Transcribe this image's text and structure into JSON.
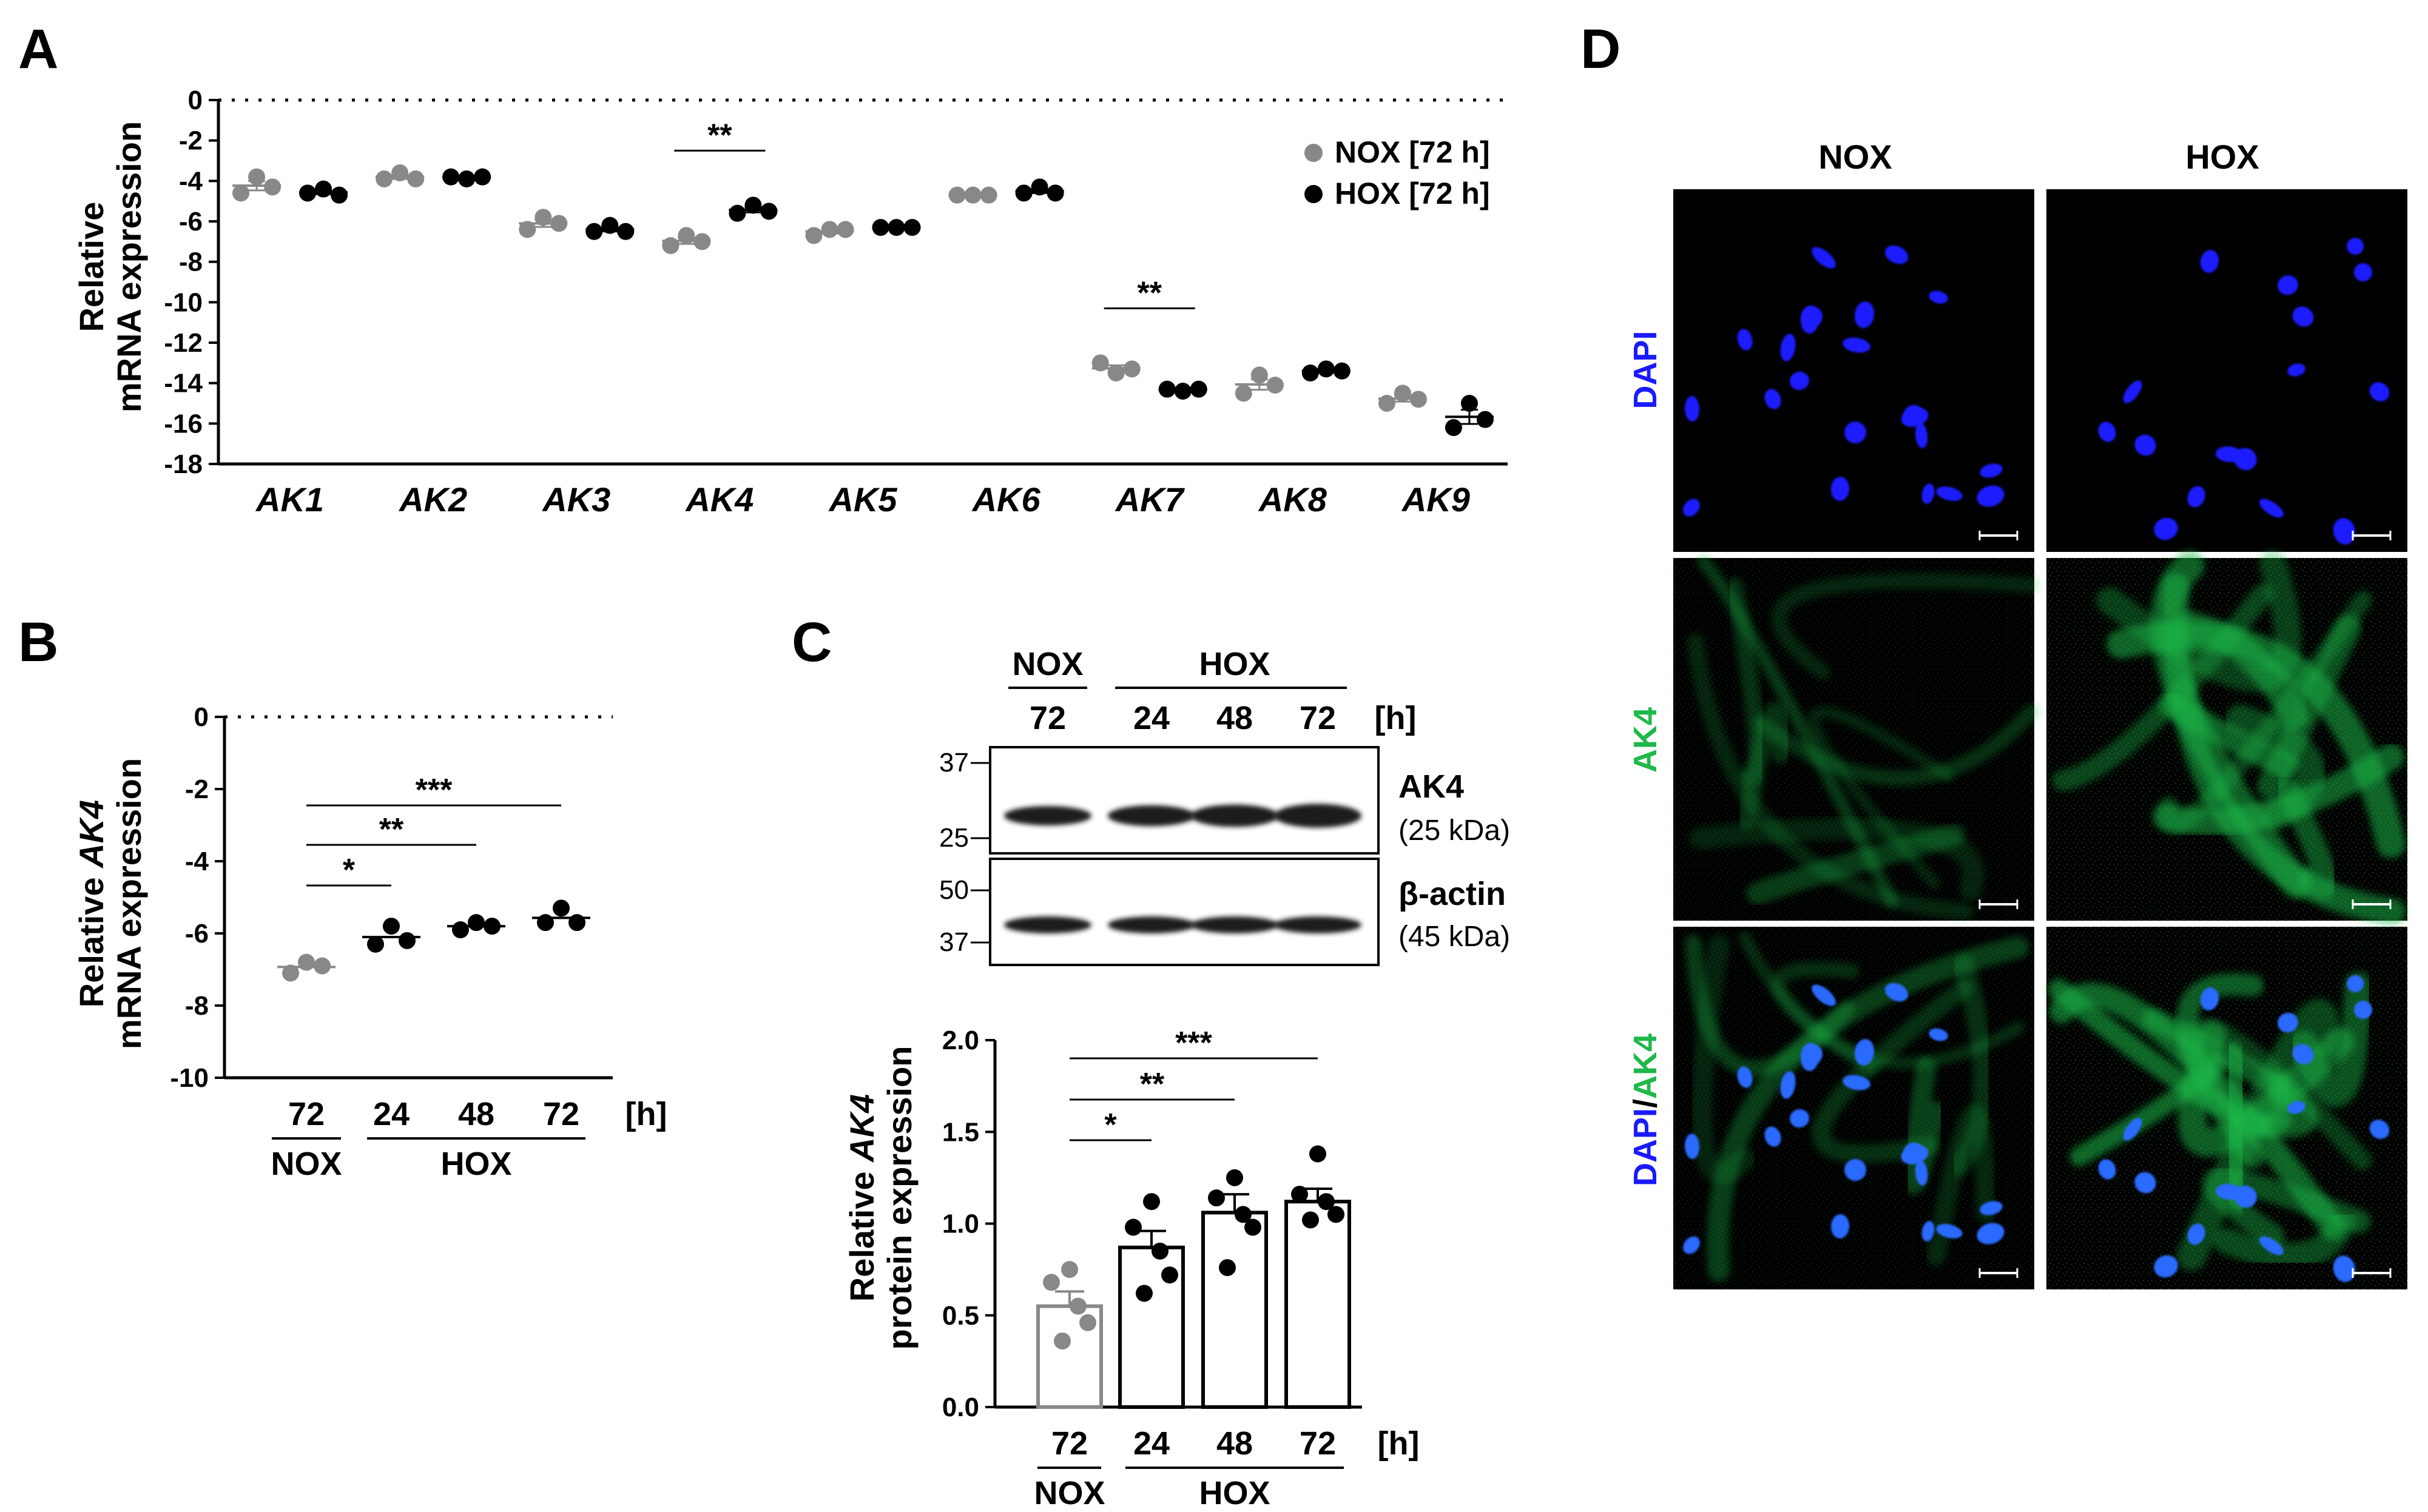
{
  "panel_labels": {
    "a": "A",
    "b": "B",
    "c": "C",
    "d": "D"
  },
  "colors": {
    "nox": "#888888",
    "hox": "#000000",
    "dapi": "#1a1aff",
    "ak4": "#1fb84a"
  },
  "chart_data": [
    {
      "panel": "A",
      "type": "scatter",
      "ylabel_line1": "Relative",
      "ylabel_line2": "mRNA expression",
      "ylim": [
        -18,
        0
      ],
      "yticks": [
        "0",
        "-2",
        "-4",
        "-6",
        "-8",
        "-10",
        "-12",
        "-14",
        "-16",
        "-18"
      ],
      "categories": [
        "AK1",
        "AK2",
        "AK3",
        "AK4",
        "AK5",
        "AK6",
        "AK7",
        "AK8",
        "AK9"
      ],
      "legend": [
        "NOX [72 h]",
        "HOX [72 h]"
      ],
      "legend_placement": "top-right",
      "series": [
        {
          "name": "NOX [72 h]",
          "points": [
            [
              -4.6,
              -3.8,
              -4.3
            ],
            [
              -3.9,
              -3.6,
              -3.9
            ],
            [
              -6.4,
              -5.8,
              -6.1
            ],
            [
              -7.2,
              -6.7,
              -7.0
            ],
            [
              -6.7,
              -6.4,
              -6.4
            ],
            [
              -4.7,
              -4.7,
              -4.7
            ],
            [
              -13.0,
              -13.5,
              -13.3
            ],
            [
              -14.5,
              -13.6,
              -14.1
            ],
            [
              -15.0,
              -14.5,
              -14.8
            ]
          ]
        },
        {
          "name": "HOX [72 h]",
          "points": [
            [
              -4.6,
              -4.4,
              -4.7
            ],
            [
              -3.8,
              -3.9,
              -3.8
            ],
            [
              -6.5,
              -6.2,
              -6.5
            ],
            [
              -5.6,
              -5.2,
              -5.5
            ],
            [
              -6.3,
              -6.3,
              -6.3
            ],
            [
              -4.6,
              -4.3,
              -4.6
            ],
            [
              -14.3,
              -14.4,
              -14.3
            ],
            [
              -13.5,
              -13.3,
              -13.4
            ],
            [
              -16.2,
              -15.0,
              -15.8
            ]
          ]
        }
      ],
      "significance": [
        {
          "category": "AK4",
          "label": "**"
        },
        {
          "category": "AK7",
          "label": "**"
        }
      ]
    },
    {
      "panel": "B",
      "type": "scatter",
      "ylabel_prefix": "Relative ",
      "ylabel_italic": "AK4",
      "ylabel_line2": "mRNA expression",
      "ylim": [
        -10,
        0
      ],
      "yticks": [
        "0",
        "-2",
        "-4",
        "-6",
        "-8",
        "-10"
      ],
      "categories": [
        "72",
        "24",
        "48",
        "72"
      ],
      "unit_label": "[h]",
      "group_labels": [
        "NOX",
        "HOX"
      ],
      "series": [
        {
          "group": "NOX",
          "points": [
            [
              -7.1,
              -6.8,
              -6.9
            ]
          ]
        },
        {
          "group": "HOX",
          "points": [
            [
              -6.3,
              -5.8,
              -6.2
            ],
            [
              -5.9,
              -5.7,
              -5.8
            ],
            [
              -5.7,
              -5.3,
              -5.7
            ]
          ]
        }
      ],
      "means": [
        -6.93,
        -6.1,
        -5.8,
        -5.57
      ],
      "significance": [
        {
          "from": 0,
          "to": 1,
          "label": "*"
        },
        {
          "from": 0,
          "to": 2,
          "label": "**"
        },
        {
          "from": 0,
          "to": 3,
          "label": "***"
        }
      ]
    },
    {
      "panel": "C",
      "type": "bar",
      "ylabel_prefix": "Relative ",
      "ylabel_italic": "AK4",
      "ylabel_line2": "protein expression",
      "ylim": [
        0,
        2.0
      ],
      "yticks": [
        "0.0",
        "0.5",
        "1.0",
        "1.5",
        "2.0"
      ],
      "categories": [
        "72",
        "24",
        "48",
        "72"
      ],
      "unit_label": "[h]",
      "group_labels": [
        "NOX",
        "HOX"
      ],
      "values": [
        0.55,
        0.87,
        1.06,
        1.12
      ],
      "errors": [
        0.08,
        0.09,
        0.1,
        0.07
      ],
      "points": [
        [
          0.75,
          0.68,
          0.55,
          0.46,
          0.36
        ],
        [
          1.12,
          0.98,
          0.85,
          0.72,
          0.62
        ],
        [
          1.25,
          1.14,
          1.05,
          0.98,
          0.76
        ],
        [
          1.38,
          1.16,
          1.12,
          1.05,
          1.02
        ]
      ],
      "significance": [
        {
          "from": 0,
          "to": 1,
          "label": "*"
        },
        {
          "from": 0,
          "to": 2,
          "label": "**"
        },
        {
          "from": 0,
          "to": 3,
          "label": "***"
        }
      ]
    }
  ],
  "blot": {
    "group_labels": [
      "NOX",
      "HOX"
    ],
    "lanes": [
      "72",
      "24",
      "48",
      "72"
    ],
    "unit_label": "[h]",
    "markers_top": [
      "37",
      "25"
    ],
    "markers_bottom": [
      "50",
      "37"
    ],
    "proteins": [
      {
        "name": "AK4",
        "size": "(25 kDa)"
      },
      {
        "name": "β-actin",
        "size": "(45 kDa)"
      }
    ]
  },
  "micro": {
    "columns": [
      "NOX",
      "HOX"
    ],
    "rows": [
      {
        "label": "DAPI"
      },
      {
        "label": "AK4"
      },
      {
        "label_part1": "DAPI",
        "label_sep": "/",
        "label_part2": "AK4"
      }
    ]
  }
}
